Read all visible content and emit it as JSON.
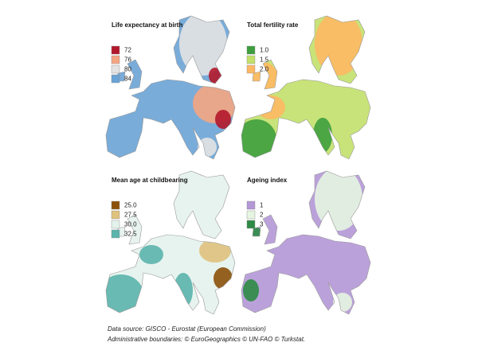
{
  "panels": [
    {
      "title": "Life expectancy at birth",
      "legend": [
        {
          "label": "72",
          "color": "#b2182b"
        },
        {
          "label": "76",
          "color": "#f4a582"
        },
        {
          "label": "80",
          "color": "#e3e3e3"
        },
        {
          "label": "84",
          "color": "#6aa3d5"
        }
      ]
    },
    {
      "title": "Total fertility rate",
      "legend": [
        {
          "label": "1.0",
          "color": "#3d9e3d"
        },
        {
          "label": "1.5",
          "color": "#c2e06a"
        },
        {
          "label": "2.0",
          "color": "#fdb863"
        }
      ]
    },
    {
      "title": "Mean age at childbearing",
      "legend": [
        {
          "label": "25.0",
          "color": "#8c510a"
        },
        {
          "label": "27.5",
          "color": "#dfc27d"
        },
        {
          "label": "30.0",
          "color": "#e4f2ec"
        },
        {
          "label": "32.5",
          "color": "#5ab4ac"
        }
      ]
    },
    {
      "title": "Ageing index",
      "legend": [
        {
          "label": "1",
          "color": "#b497d6"
        },
        {
          "label": "2",
          "color": "#e5f5e0"
        },
        {
          "label": "3",
          "color": "#2e8b45"
        }
      ]
    }
  ],
  "caption": {
    "source": "Data source: GISCO - Eurostat (European Commission)",
    "boundaries": "Administrative boundaries: © EuroGeographics © UN-FAO © Turkstat."
  }
}
